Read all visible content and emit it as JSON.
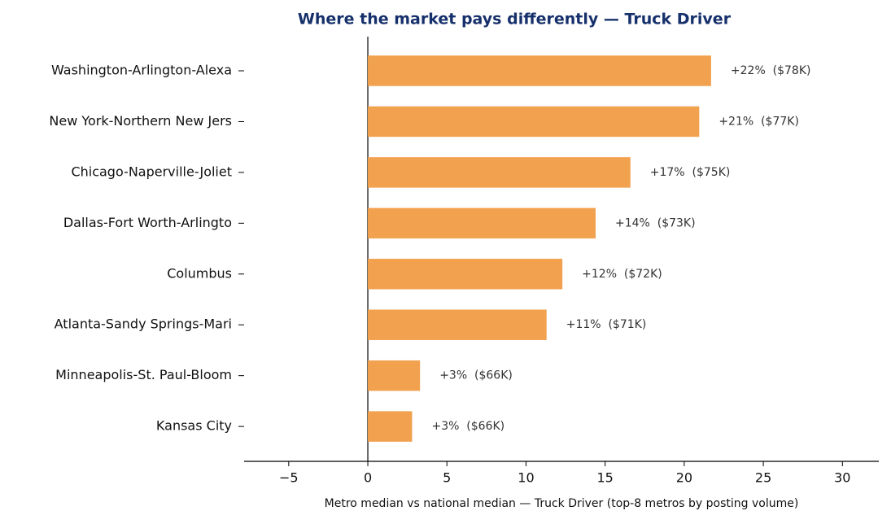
{
  "chart_data": {
    "type": "barh",
    "title": "Where the market pays differently — Truck Driver",
    "xlabel": "Metro median vs national median — Truck Driver (top-8 metros by posting volume)",
    "categories": [
      "Washington-Arlington-Alexa",
      "New York-Northern New Jers",
      "Chicago-Naperville-Joliet",
      "Dallas-Fort Worth-Arlingto",
      "Columbus",
      "Atlanta-Sandy Springs-Mari",
      "Minneapolis-St. Paul-Bloom",
      "Kansas City"
    ],
    "values": [
      21.7,
      20.95,
      16.6,
      14.4,
      12.3,
      11.3,
      3.3,
      2.8
    ],
    "value_labels": [
      "+22%  ($78K)",
      "+21%  ($77K)",
      "+17%  ($75K)",
      "+14%  ($73K)",
      "+12%  ($72K)",
      "+11%  ($71K)",
      "+3%  ($66K)",
      "+3%  ($66K)"
    ],
    "color": "#f2a14f",
    "xlim": [
      -7.82,
      32.3
    ],
    "xticks": [
      {
        "value": -5,
        "label": "−5"
      },
      0,
      5,
      10,
      15,
      20,
      25,
      30
    ]
  }
}
